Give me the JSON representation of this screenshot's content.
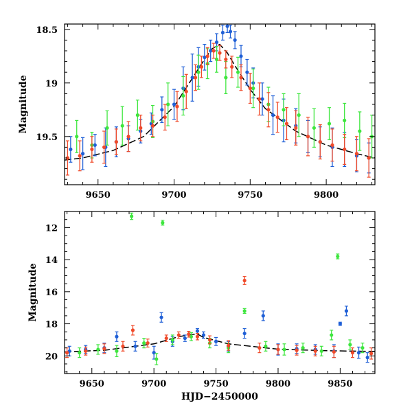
{
  "chart_data": [
    {
      "type": "scatter",
      "panel": "top",
      "title": "",
      "xlabel": "",
      "ylabel": "Magnitude",
      "xlim": [
        9628,
        9832
      ],
      "ylim": [
        19.95,
        18.45
      ],
      "y_inverted": true,
      "xticks": [
        9650,
        9700,
        9750,
        9800
      ],
      "xtick_labels": [
        "9650",
        "9700",
        "9750",
        "9800"
      ],
      "yticks": [
        18.5,
        19,
        19.5
      ],
      "ytick_labels": [
        "18.5",
        "19",
        "19.5"
      ],
      "model_curve": {
        "name": "model fit",
        "color": "#000000",
        "x": [
          9628,
          9640,
          9660,
          9680,
          9700,
          9710,
          9720,
          9725,
          9730,
          9735,
          9740,
          9750,
          9760,
          9780,
          9800,
          9820,
          9832
        ],
        "y": [
          19.72,
          19.7,
          19.63,
          19.5,
          19.22,
          19.0,
          18.78,
          18.68,
          18.64,
          18.72,
          18.84,
          19.06,
          19.24,
          19.45,
          19.58,
          19.66,
          19.7
        ]
      },
      "series": [
        {
          "name": "blue",
          "color": "#1f5fd6",
          "x": [
            9632,
            9640,
            9648,
            9655,
            9662,
            9670,
            9678,
            9685,
            9692,
            9700,
            9706,
            9712,
            9716,
            9720,
            9724,
            9728,
            9732,
            9735,
            9737,
            9740,
            9744,
            9748,
            9752,
            9758,
            9765,
            9772,
            9780,
            9788,
            9796,
            9804,
            9812,
            9820,
            9828
          ],
          "y": [
            19.62,
            19.66,
            19.58,
            19.6,
            19.55,
            19.52,
            19.45,
            19.38,
            19.25,
            19.2,
            19.05,
            18.95,
            18.85,
            18.76,
            18.7,
            18.62,
            18.53,
            18.47,
            18.52,
            18.6,
            18.75,
            18.9,
            19.0,
            19.15,
            19.3,
            19.35,
            19.4,
            19.5,
            19.55,
            19.6,
            19.62,
            19.68,
            19.7
          ],
          "err": [
            0.12,
            0.15,
            0.1,
            0.18,
            0.14,
            0.12,
            0.11,
            0.1,
            0.12,
            0.14,
            0.2,
            0.22,
            0.18,
            0.12,
            0.1,
            0.08,
            0.07,
            0.06,
            0.06,
            0.08,
            0.1,
            0.12,
            0.14,
            0.15,
            0.18,
            0.2,
            0.16,
            0.15,
            0.14,
            0.18,
            0.16,
            0.15,
            0.14
          ]
        },
        {
          "name": "green",
          "color": "#3ee63e",
          "x": [
            9636,
            9646,
            9656,
            9666,
            9676,
            9686,
            9696,
            9706,
            9716,
            9722,
            9728,
            9734,
            9742,
            9752,
            9762,
            9772,
            9782,
            9792,
            9802,
            9812,
            9822,
            9830
          ],
          "y": [
            19.5,
            19.58,
            19.42,
            19.4,
            19.3,
            19.36,
            19.2,
            19.12,
            18.9,
            18.82,
            18.78,
            18.95,
            18.9,
            19.05,
            19.2,
            19.25,
            19.3,
            19.42,
            19.38,
            19.35,
            19.45,
            19.5
          ],
          "err": [
            0.15,
            0.12,
            0.16,
            0.18,
            0.14,
            0.15,
            0.2,
            0.18,
            0.16,
            0.14,
            0.12,
            0.15,
            0.14,
            0.18,
            0.16,
            0.15,
            0.2,
            0.18,
            0.15,
            0.16,
            0.18,
            0.2
          ]
        },
        {
          "name": "red",
          "color": "#f04a2a",
          "x": [
            9630,
            9638,
            9646,
            9654,
            9662,
            9670,
            9678,
            9686,
            9694,
            9702,
            9708,
            9714,
            9718,
            9722,
            9726,
            9730,
            9734,
            9738,
            9744,
            9750,
            9756,
            9762,
            9768,
            9774,
            9780,
            9788,
            9796,
            9804,
            9812,
            9820,
            9828
          ],
          "y": [
            19.7,
            19.68,
            19.62,
            19.6,
            19.55,
            19.5,
            19.42,
            19.4,
            19.32,
            19.22,
            19.08,
            18.95,
            18.85,
            18.75,
            18.7,
            18.72,
            18.78,
            18.85,
            18.95,
            19.05,
            19.15,
            19.25,
            19.32,
            19.38,
            19.42,
            19.5,
            19.55,
            19.58,
            19.62,
            19.66,
            19.7
          ],
          "err": [
            0.16,
            0.14,
            0.12,
            0.15,
            0.12,
            0.14,
            0.12,
            0.1,
            0.12,
            0.14,
            0.16,
            0.12,
            0.1,
            0.08,
            0.07,
            0.07,
            0.08,
            0.1,
            0.12,
            0.14,
            0.15,
            0.16,
            0.14,
            0.15,
            0.16,
            0.18,
            0.16,
            0.15,
            0.14,
            0.16,
            0.18
          ]
        }
      ]
    },
    {
      "type": "scatter",
      "panel": "bottom",
      "title": "",
      "xlabel": "HJD−2450000",
      "ylabel": "Magnitude",
      "xlim": [
        9628,
        9878
      ],
      "ylim": [
        21.1,
        11.0
      ],
      "y_inverted": true,
      "xticks": [
        9650,
        9700,
        9750,
        9800,
        9850
      ],
      "xtick_labels": [
        "9650",
        "9700",
        "9750",
        "9800",
        "9850"
      ],
      "yticks": [
        12,
        14,
        16,
        18,
        20
      ],
      "ytick_labels": [
        "12",
        "14",
        "16",
        "18",
        "20"
      ],
      "model_curve": {
        "name": "model fit",
        "color": "#000000",
        "x": [
          9628,
          9660,
          9700,
          9720,
          9730,
          9735,
          9740,
          9760,
          9800,
          9840,
          9878
        ],
        "y": [
          19.75,
          19.65,
          19.25,
          18.8,
          18.66,
          18.64,
          18.85,
          19.25,
          19.58,
          19.68,
          19.72
        ]
      },
      "series": [
        {
          "name": "blue",
          "color": "#1f5fd6",
          "x": [
            9632,
            9645,
            9660,
            9670,
            9685,
            9700,
            9706,
            9715,
            9725,
            9735,
            9740,
            9750,
            9760,
            9773,
            9788,
            9800,
            9815,
            9830,
            9845,
            9850,
            9855,
            9865,
            9872
          ],
          "y": [
            19.7,
            19.6,
            19.5,
            18.8,
            19.4,
            19.8,
            17.6,
            19.1,
            18.9,
            18.45,
            18.7,
            19.1,
            19.4,
            18.6,
            17.5,
            19.6,
            19.55,
            19.6,
            19.7,
            18.0,
            17.2,
            19.8,
            20.1
          ],
          "err": [
            0.3,
            0.25,
            0.3,
            0.3,
            0.3,
            0.4,
            0.3,
            0.3,
            0.2,
            0.15,
            0.2,
            0.25,
            0.3,
            0.3,
            0.3,
            0.35,
            0.3,
            0.3,
            0.4,
            0.1,
            0.3,
            0.35,
            0.3
          ]
        },
        {
          "name": "green",
          "color": "#3ee63e",
          "x": [
            9640,
            9655,
            9670,
            9682,
            9692,
            9702,
            9707,
            9715,
            9730,
            9745,
            9760,
            9773,
            9790,
            9805,
            9820,
            9835,
            9843,
            9848,
            9858,
            9868
          ],
          "y": [
            19.8,
            19.6,
            19.7,
            11.3,
            19.2,
            20.2,
            11.7,
            19.0,
            18.8,
            19.2,
            19.5,
            17.2,
            19.4,
            19.6,
            19.5,
            19.7,
            18.7,
            13.8,
            19.3,
            19.5
          ],
          "err": [
            0.3,
            0.3,
            0.35,
            0.2,
            0.3,
            0.35,
            0.15,
            0.3,
            0.25,
            0.3,
            0.3,
            0.15,
            0.3,
            0.35,
            0.3,
            0.3,
            0.3,
            0.15,
            0.3,
            0.3
          ],
          "outlier_indices": [
            3,
            6,
            11,
            16,
            17
          ]
        },
        {
          "name": "red",
          "color": "#f04a2a",
          "x": [
            9630,
            9645,
            9660,
            9675,
            9683,
            9695,
            9710,
            9720,
            9728,
            9735,
            9745,
            9760,
            9773,
            9785,
            9800,
            9815,
            9830,
            9845,
            9860,
            9875
          ],
          "y": [
            19.8,
            19.7,
            19.55,
            19.4,
            18.4,
            19.2,
            18.9,
            18.7,
            18.65,
            18.8,
            19.0,
            19.35,
            15.3,
            19.5,
            19.6,
            19.65,
            19.7,
            19.75,
            19.8,
            19.85
          ],
          "err": [
            0.3,
            0.25,
            0.3,
            0.3,
            0.3,
            0.25,
            0.2,
            0.2,
            0.18,
            0.2,
            0.25,
            0.3,
            0.25,
            0.3,
            0.3,
            0.3,
            0.3,
            0.35,
            0.3,
            0.35
          ]
        }
      ]
    }
  ]
}
